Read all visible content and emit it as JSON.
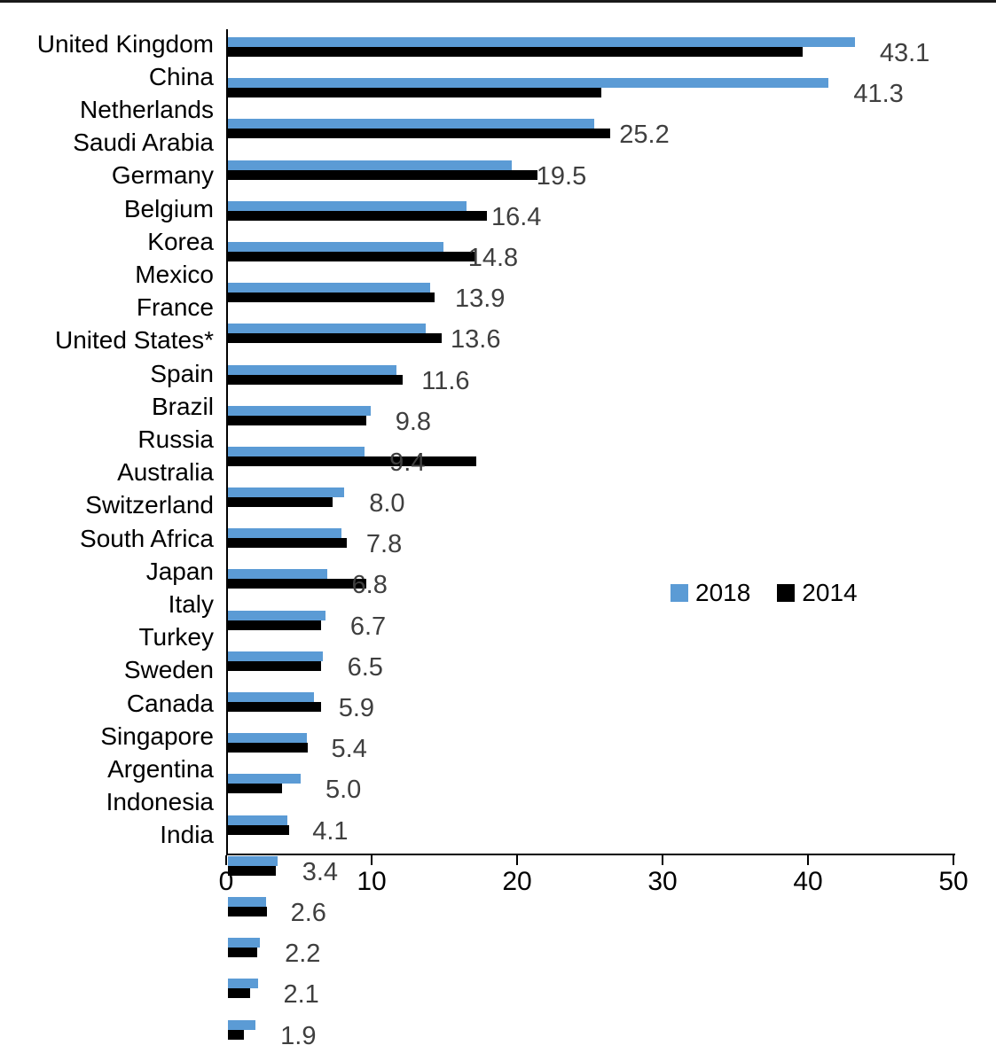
{
  "chart_data": {
    "type": "bar",
    "orientation": "horizontal",
    "title": "",
    "xlabel": "",
    "ylabel": "",
    "xlim": [
      0,
      50
    ],
    "x_ticks": [
      0,
      10,
      20,
      30,
      40,
      50
    ],
    "grid": false,
    "legend_position": "middle-right",
    "categories": [
      "United Kingdom",
      "China",
      "Netherlands",
      "Saudi Arabia",
      "Germany",
      "Belgium",
      "Korea",
      "Mexico",
      "France",
      "United States*",
      "Spain",
      "Brazil",
      "Russia",
      "Australia",
      "Switzerland",
      "South Africa",
      "Japan",
      "Italy",
      "Turkey",
      "Sweden",
      "Canada",
      "Singapore",
      "Argentina",
      "Indonesia",
      "India"
    ],
    "series": [
      {
        "name": "2018",
        "color": "#5B9BD5",
        "data_labels_shown": true,
        "values": [
          43.1,
          41.3,
          25.2,
          19.5,
          16.4,
          14.8,
          13.9,
          13.6,
          11.6,
          9.8,
          9.4,
          8.0,
          7.8,
          6.8,
          6.7,
          6.5,
          5.9,
          5.4,
          5.0,
          4.1,
          3.4,
          2.6,
          2.2,
          2.1,
          1.9
        ]
      },
      {
        "name": "2014",
        "color": "#000000",
        "data_labels_shown": false,
        "values_estimated": true,
        "values": [
          39.5,
          25.7,
          26.3,
          21.3,
          17.8,
          17.0,
          14.2,
          14.7,
          12.0,
          9.5,
          17.1,
          7.2,
          8.2,
          9.5,
          6.4,
          6.4,
          6.4,
          5.5,
          3.7,
          4.2,
          3.3,
          2.7,
          2.0,
          1.5,
          1.1
        ]
      }
    ],
    "data_label_color": "#3f3f3f",
    "axis_color": "#000000"
  }
}
